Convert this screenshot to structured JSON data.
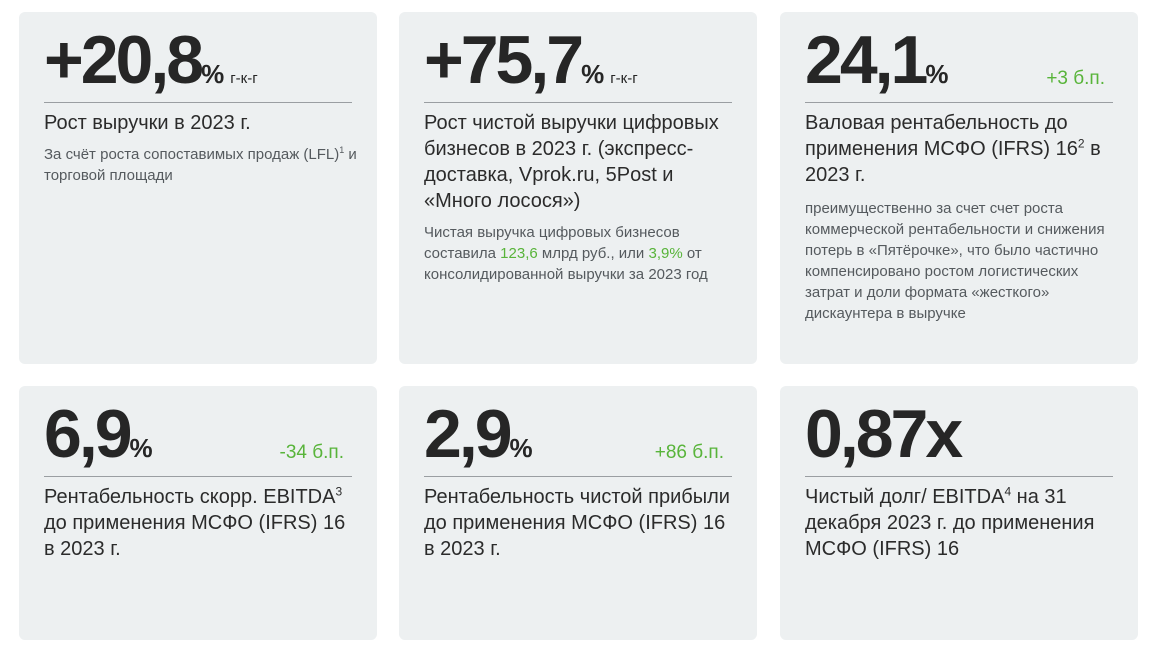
{
  "cards": [
    {
      "value": "+20,8",
      "percent": "%",
      "suffix": "г-к-г",
      "title": "Рост выручки в 2023 г.",
      "note_a": "За счёт роста сопоставимых продаж (LFL)",
      "note_sup": "1",
      "note_b": " и торговой площади"
    },
    {
      "value": "+75,7",
      "percent": "%",
      "suffix": "г-к-г",
      "title": "Рост чистой выручки цифровых бизнесов в 2023 г. (экспресс-доставка, Vprok.ru, 5Post и «Много лосося»)",
      "note_a": "Чистая выручка цифровых бизнесов составила ",
      "note_hl1": "123,6",
      "note_b": " млрд руб., или ",
      "note_hl2": "3,9%",
      "note_c": " от консолидированной выручки за 2023 год"
    },
    {
      "value": "24,1",
      "percent": "%",
      "delta": "+3 б.п.",
      "title_a": "Валовая рентабельность до применения МСФО (IFRS) 16",
      "title_sup": "2",
      "title_b": " в 2023 г.",
      "note": "преимущественно за счет счет роста коммерческой рентабельности и снижения потерь в «Пятёрочке», что было частично компенсировано ростом логистических затрат и доли формата «жесткого» дискаунтера в выручке"
    },
    {
      "value": "6,9",
      "percent": "%",
      "delta": "-34 б.п.",
      "title_a": "Рентабельность скорр. EBITDA",
      "title_sup": "3",
      "title_b": " до применения МСФО (IFRS) 16 в 2023 г."
    },
    {
      "value": "2,9",
      "percent": "%",
      "delta": "+86 б.п.",
      "title": "Рентабельность чистой прибыли до применения МСФО (IFRS) 16 в 2023 г."
    },
    {
      "value": "0,87x",
      "title_a": "Чистый долг/ EBITDA",
      "title_sup": "4",
      "title_b": " на 31 декабря 2023 г. до применения МСФО (IFRS) 16"
    }
  ],
  "colors": {
    "card_bg": "#edf0f1",
    "accent_green": "#58b43a",
    "text": "#2b2b2b"
  }
}
